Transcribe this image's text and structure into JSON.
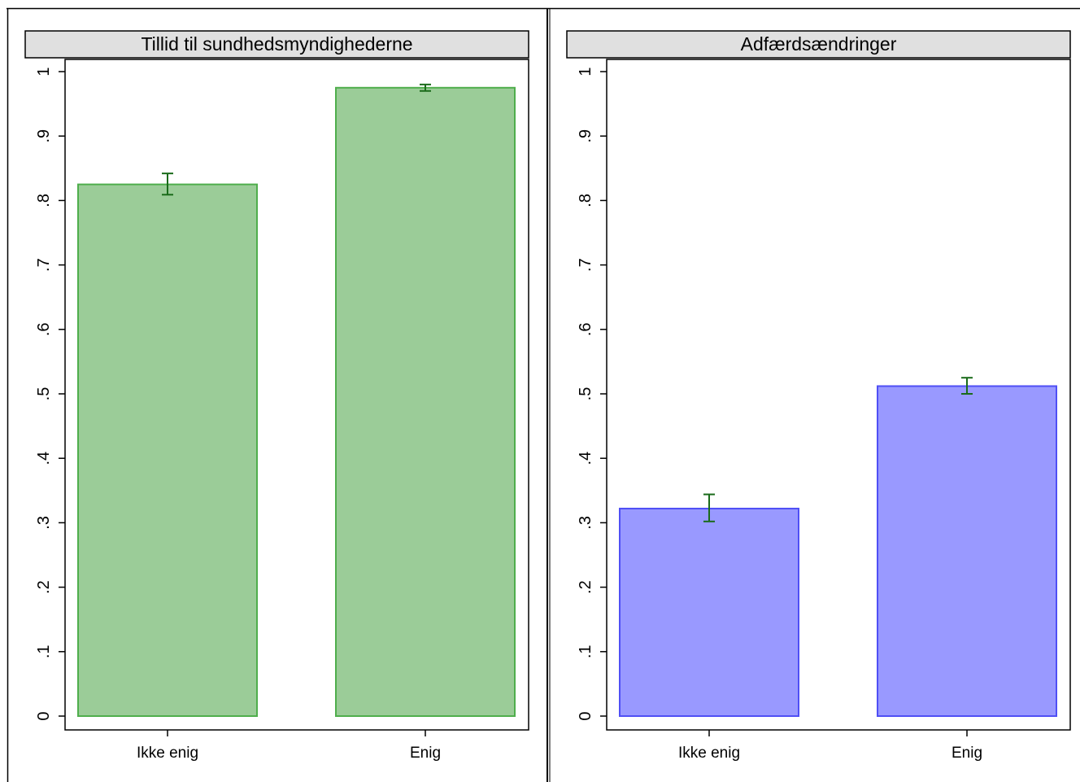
{
  "chart_data": [
    {
      "type": "bar",
      "title": "Tillid til sundhedsmyndighederne",
      "categories": [
        "Ikke enig",
        "Enig"
      ],
      "values": [
        0.825,
        0.975
      ],
      "error_low": [
        0.809,
        0.97
      ],
      "error_high": [
        0.842,
        0.98
      ],
      "ylim": [
        0,
        1
      ],
      "yticks": [
        0,
        0.1,
        0.2,
        0.3,
        0.4,
        0.5,
        0.6,
        0.7,
        0.8,
        0.9,
        1
      ],
      "ytick_labels": [
        "0",
        ".1",
        ".2",
        ".3",
        ".4",
        ".5",
        ".6",
        ".7",
        ".8",
        ".9",
        "1"
      ],
      "bar_fill": "#9bcc98",
      "bar_stroke": "#4fae4c",
      "errorbar_color": "#1a6b1a",
      "grid": false
    },
    {
      "type": "bar",
      "title": "Adfærdsændringer",
      "categories": [
        "Ikke enig",
        "Enig"
      ],
      "values": [
        0.322,
        0.512
      ],
      "error_low": [
        0.302,
        0.5
      ],
      "error_high": [
        0.344,
        0.525
      ],
      "ylim": [
        0,
        1
      ],
      "yticks": [
        0,
        0.1,
        0.2,
        0.3,
        0.4,
        0.5,
        0.6,
        0.7,
        0.8,
        0.9,
        1
      ],
      "ytick_labels": [
        "0",
        ".1",
        ".2",
        ".3",
        ".4",
        ".5",
        ".6",
        ".7",
        ".8",
        ".9",
        "1"
      ],
      "bar_fill": "#9999ff",
      "bar_stroke": "#4f4ff5",
      "errorbar_color": "#1a6b1a",
      "grid": false
    }
  ]
}
